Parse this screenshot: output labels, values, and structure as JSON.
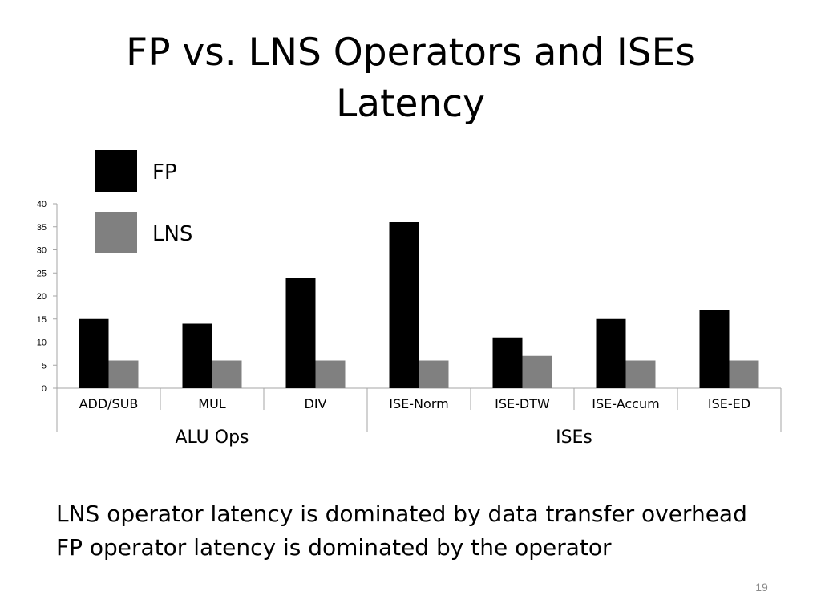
{
  "slide": {
    "title_lines": [
      "FP vs. LNS Operators and ISEs",
      "Latency"
    ],
    "captions": [
      "LNS operator latency is dominated by data transfer overhead",
      "FP operator latency is dominated by the operator"
    ],
    "page_number": "19"
  },
  "chart_data": {
    "type": "bar",
    "title": "",
    "xlabel": "",
    "ylabel": "",
    "categories": [
      "ADD/SUB",
      "MUL",
      "DIV",
      "ISE-Norm",
      "ISE-DTW",
      "ISE-Accum",
      "ISE-ED"
    ],
    "groups": [
      {
        "label": "ALU Ops",
        "categories": [
          "ADD/SUB",
          "MUL",
          "DIV"
        ]
      },
      {
        "label": "ISEs",
        "categories": [
          "ISE-Norm",
          "ISE-DTW",
          "ISE-Accum",
          "ISE-ED"
        ]
      }
    ],
    "series": [
      {
        "name": "FP",
        "color": "#000000",
        "values": [
          15,
          14,
          24,
          36,
          11,
          15,
          17
        ]
      },
      {
        "name": "LNS",
        "color": "#808080",
        "values": [
          6,
          6,
          6,
          6,
          7,
          6,
          6
        ]
      }
    ],
    "ylim": [
      0,
      40
    ],
    "yticks": [
      0,
      5,
      10,
      15,
      20,
      25,
      30,
      35,
      40
    ],
    "grid": false,
    "legend_position": "top-left"
  }
}
